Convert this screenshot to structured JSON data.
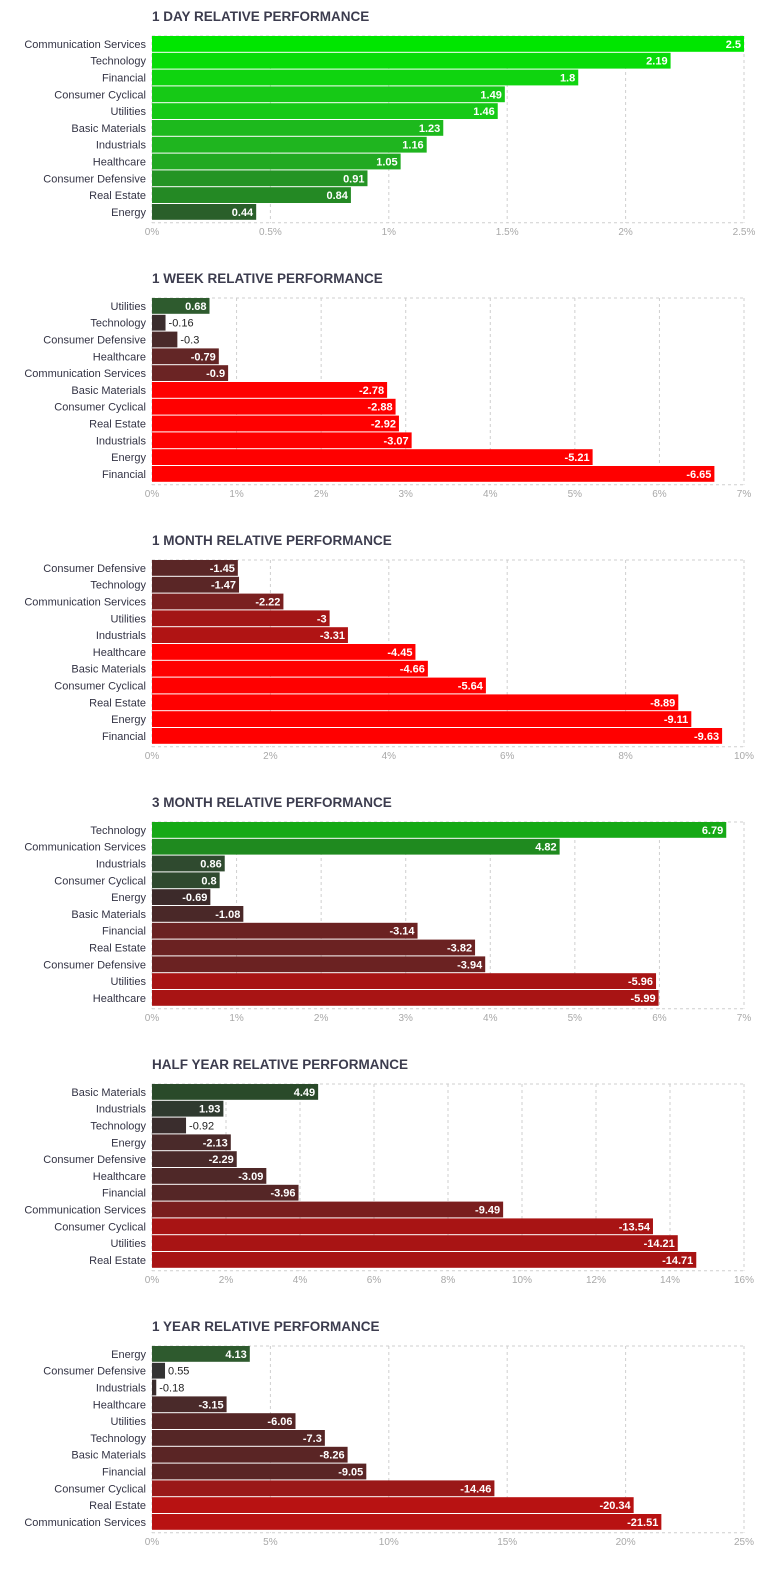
{
  "chart_data": [
    {
      "type": "bar",
      "orientation": "horizontal",
      "title": "1 DAY RELATIVE PERFORMANCE",
      "categories": [
        "Communication Services",
        "Technology",
        "Financial",
        "Consumer Cyclical",
        "Utilities",
        "Basic Materials",
        "Industrials",
        "Healthcare",
        "Consumer Defensive",
        "Real Estate",
        "Energy"
      ],
      "values": [
        2.5,
        2.19,
        1.8,
        1.49,
        1.46,
        1.23,
        1.16,
        1.05,
        0.91,
        0.84,
        0.44
      ],
      "value_labels": [
        "2.5",
        "2.19",
        "1.8",
        "1.49",
        "1.46",
        "1.23",
        "1.16",
        "1.05",
        "0.91",
        "0.84",
        "0.44"
      ],
      "bar_colors": [
        "#00e600",
        "#08dc08",
        "#0fd40f",
        "#16c916",
        "#16c916",
        "#1db91d",
        "#1fb51f",
        "#21a921",
        "#249424",
        "#248924",
        "#2a5f2a"
      ],
      "xlim": [
        0,
        2.5
      ],
      "ticks": [
        "0%",
        "0.5%",
        "1%",
        "1.5%",
        "2%",
        "2.5%"
      ],
      "grid": true
    },
    {
      "type": "bar",
      "orientation": "horizontal",
      "title": "1 WEEK RELATIVE PERFORMANCE",
      "categories": [
        "Utilities",
        "Technology",
        "Consumer Defensive",
        "Healthcare",
        "Communication Services",
        "Basic Materials",
        "Consumer Cyclical",
        "Real Estate",
        "Industrials",
        "Energy",
        "Financial"
      ],
      "values": [
        0.68,
        -0.16,
        -0.3,
        -0.79,
        -0.9,
        -2.78,
        -2.88,
        -2.92,
        -3.07,
        -5.21,
        -6.65
      ],
      "value_labels": [
        "0.68",
        "-0.16",
        "-0.3",
        "-0.79",
        "-0.9",
        "-2.78",
        "-2.88",
        "-2.92",
        "-3.07",
        "-5.21",
        "-6.65"
      ],
      "bar_colors": [
        "#2e5b2e",
        "#3a2d2d",
        "#4a2a2a",
        "#632626",
        "#6b2424",
        "#ff0000",
        "#ff0000",
        "#ff0000",
        "#ff0000",
        "#ff0000",
        "#ff0000"
      ],
      "xlim": [
        0,
        7
      ],
      "ticks": [
        "0%",
        "1%",
        "2%",
        "3%",
        "4%",
        "5%",
        "6%",
        "7%"
      ],
      "grid": true
    },
    {
      "type": "bar",
      "orientation": "horizontal",
      "title": "1 MONTH RELATIVE PERFORMANCE",
      "categories": [
        "Consumer Defensive",
        "Technology",
        "Communication Services",
        "Utilities",
        "Industrials",
        "Healthcare",
        "Basic Materials",
        "Consumer Cyclical",
        "Real Estate",
        "Energy",
        "Financial"
      ],
      "values": [
        -1.45,
        -1.47,
        -2.22,
        -3,
        -3.31,
        -4.45,
        -4.66,
        -5.64,
        -8.89,
        -9.11,
        -9.63
      ],
      "value_labels": [
        "-1.45",
        "-1.47",
        "-2.22",
        "-3",
        "-3.31",
        "-4.45",
        "-4.66",
        "-5.64",
        "-8.89",
        "-9.11",
        "-9.63"
      ],
      "bar_colors": [
        "#5a2626",
        "#5a2626",
        "#7a2020",
        "#a31616",
        "#b01414",
        "#ff0000",
        "#ff0000",
        "#ff0000",
        "#ff0000",
        "#ff0000",
        "#ff0000"
      ],
      "xlim": [
        0,
        10
      ],
      "ticks": [
        "0%",
        "2%",
        "4%",
        "6%",
        "8%",
        "10%"
      ],
      "grid": true
    },
    {
      "type": "bar",
      "orientation": "horizontal",
      "title": "3 MONTH RELATIVE PERFORMANCE",
      "categories": [
        "Technology",
        "Communication Services",
        "Industrials",
        "Consumer Cyclical",
        "Energy",
        "Basic Materials",
        "Financial",
        "Real Estate",
        "Consumer Defensive",
        "Utilities",
        "Healthcare"
      ],
      "values": [
        6.79,
        4.82,
        0.86,
        0.8,
        -0.69,
        -1.08,
        -3.14,
        -3.82,
        -3.94,
        -5.96,
        -5.99
      ],
      "value_labels": [
        "6.79",
        "4.82",
        "0.86",
        "0.8",
        "-0.69",
        "-1.08",
        "-3.14",
        "-3.82",
        "-3.94",
        "-5.96",
        "-5.99"
      ],
      "bar_colors": [
        "#16a916",
        "#1f8a1f",
        "#2f4a2f",
        "#2f4a2f",
        "#3c2a2a",
        "#4a2828",
        "#6b2222",
        "#6b2222",
        "#6b2222",
        "#a81414",
        "#a81414"
      ],
      "xlim": [
        0,
        7
      ],
      "ticks": [
        "0%",
        "1%",
        "2%",
        "3%",
        "4%",
        "5%",
        "6%",
        "7%"
      ],
      "grid": true
    },
    {
      "type": "bar",
      "orientation": "horizontal",
      "title": "HALF YEAR RELATIVE PERFORMANCE",
      "categories": [
        "Basic Materials",
        "Industrials",
        "Technology",
        "Energy",
        "Consumer Defensive",
        "Healthcare",
        "Financial",
        "Communication Services",
        "Consumer Cyclical",
        "Utilities",
        "Real Estate"
      ],
      "values": [
        4.49,
        1.93,
        -0.92,
        -2.13,
        -2.29,
        -3.09,
        -3.96,
        -9.49,
        -13.54,
        -14.21,
        -14.71
      ],
      "value_labels": [
        "4.49",
        "1.93",
        "-0.92",
        "-2.13",
        "-2.29",
        "-3.09",
        "-3.96",
        "-9.49",
        "-13.54",
        "-14.21",
        "-14.71"
      ],
      "bar_colors": [
        "#2a4a2a",
        "#2f3a2f",
        "#3a2d2d",
        "#4a2a2a",
        "#4a2a2a",
        "#4f2828",
        "#552626",
        "#7a1e1e",
        "#a81414",
        "#a81414",
        "#a81414"
      ],
      "xlim": [
        0,
        16
      ],
      "ticks": [
        "0%",
        "2%",
        "4%",
        "6%",
        "8%",
        "10%",
        "12%",
        "14%",
        "16%"
      ],
      "grid": true
    },
    {
      "type": "bar",
      "orientation": "horizontal",
      "title": "1 YEAR RELATIVE PERFORMANCE",
      "categories": [
        "Energy",
        "Consumer Defensive",
        "Industrials",
        "Healthcare",
        "Utilities",
        "Technology",
        "Basic Materials",
        "Financial",
        "Consumer Cyclical",
        "Real Estate",
        "Communication Services"
      ],
      "values": [
        4.13,
        0.55,
        -0.18,
        -3.15,
        -6.06,
        -7.3,
        -8.26,
        -9.05,
        -14.46,
        -20.34,
        -21.51
      ],
      "value_labels": [
        "4.13",
        "0.55",
        "-0.18",
        "-3.15",
        "-6.06",
        "-7.3",
        "-8.26",
        "-9.05",
        "-14.46",
        "-20.34",
        "-21.51"
      ],
      "bar_colors": [
        "#2e5a2e",
        "#333333",
        "#3a2d2d",
        "#4a2a2a",
        "#552626",
        "#552626",
        "#5a2525",
        "#5a2525",
        "#9a1818",
        "#b81212",
        "#b81212"
      ],
      "xlim": [
        0,
        25
      ],
      "ticks": [
        "0%",
        "5%",
        "10%",
        "15%",
        "20%",
        "25%"
      ],
      "grid": true
    }
  ]
}
